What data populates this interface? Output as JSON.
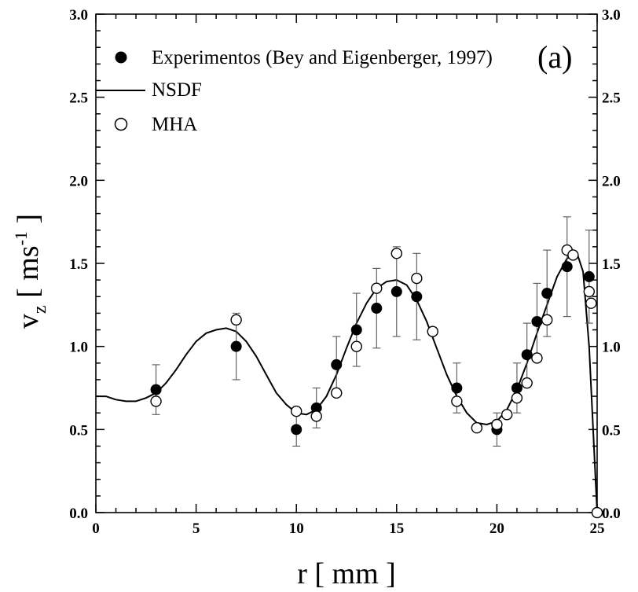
{
  "chart_data": {
    "type": "scatter",
    "title": "",
    "panel_label": "(a)",
    "xlabel": "r [ mm ]",
    "ylabel": {
      "main": "v",
      "sub": "z",
      "bracket_open": "[ ms",
      "sup": "-1",
      "bracket_close": "]"
    },
    "xlim": [
      0,
      25
    ],
    "ylim": [
      0,
      3.0
    ],
    "x_ticks": [
      "0",
      "5",
      "10",
      "15",
      "20",
      "25"
    ],
    "x_tick_values": [
      0,
      5,
      10,
      15,
      20,
      25
    ],
    "y_ticks": [
      "0.0",
      "0.5",
      "1.0",
      "1.5",
      "2.0",
      "2.5",
      "3.0"
    ],
    "y_tick_values": [
      0,
      0.5,
      1.0,
      1.5,
      2.0,
      2.5,
      3.0
    ],
    "grid": false,
    "legend_position": "top-left",
    "series": [
      {
        "name": "Experimentos (Bey and Eigenberger, 1997)",
        "marker": "filled-circle",
        "x": [
          3,
          7,
          10,
          11,
          12,
          13,
          14,
          15,
          16,
          18,
          20,
          21,
          21.5,
          22,
          22.5,
          23.5,
          24.6
        ],
        "y": [
          0.74,
          1.0,
          0.5,
          0.63,
          0.89,
          1.1,
          1.23,
          1.33,
          1.3,
          0.75,
          0.5,
          0.75,
          0.95,
          1.15,
          1.32,
          1.48,
          1.42
        ],
        "err": [
          0.15,
          0.2,
          0.1,
          0.12,
          0.17,
          0.22,
          0.24,
          0.27,
          0.26,
          0.15,
          0.1,
          0.15,
          0.19,
          0.23,
          0.26,
          0.3,
          0.28
        ]
      },
      {
        "name": "NSDF",
        "marker": "line",
        "x": [
          0,
          0.5,
          1,
          1.5,
          2,
          2.5,
          3,
          3.5,
          4,
          4.5,
          5,
          5.5,
          6,
          6.5,
          7,
          7.5,
          8,
          8.5,
          9,
          9.5,
          10,
          10.5,
          11,
          11.5,
          12,
          12.5,
          13,
          13.5,
          14,
          14.5,
          15,
          15.5,
          16,
          16.5,
          17,
          17.5,
          18,
          18.5,
          19,
          19.5,
          20,
          20.5,
          21,
          21.5,
          22,
          22.5,
          23,
          23.5,
          24,
          24.3,
          24.6,
          24.8,
          25
        ],
        "y": [
          0.7,
          0.7,
          0.68,
          0.67,
          0.67,
          0.69,
          0.72,
          0.78,
          0.86,
          0.95,
          1.03,
          1.08,
          1.1,
          1.11,
          1.09,
          1.03,
          0.94,
          0.83,
          0.72,
          0.65,
          0.6,
          0.59,
          0.62,
          0.7,
          0.83,
          0.99,
          1.14,
          1.26,
          1.35,
          1.39,
          1.4,
          1.37,
          1.28,
          1.15,
          0.99,
          0.83,
          0.7,
          0.6,
          0.54,
          0.53,
          0.55,
          0.62,
          0.74,
          0.9,
          1.08,
          1.25,
          1.42,
          1.53,
          1.56,
          1.45,
          1.0,
          0.5,
          0.0
        ]
      },
      {
        "name": "MHA",
        "marker": "open-circle",
        "x": [
          3,
          7,
          10,
          11,
          12,
          13,
          14,
          15,
          16,
          16.8,
          18,
          19,
          20,
          20.5,
          21,
          21.5,
          22,
          22.5,
          23.5,
          23.8,
          24.6,
          24.7,
          25
        ],
        "y": [
          0.67,
          1.16,
          0.61,
          0.58,
          0.72,
          1.0,
          1.35,
          1.56,
          1.41,
          1.09,
          0.67,
          0.51,
          0.53,
          0.59,
          0.69,
          0.78,
          0.93,
          1.16,
          1.58,
          1.55,
          1.33,
          1.26,
          0.0
        ]
      }
    ]
  },
  "colors": {
    "ink": "#000000",
    "background": "#ffffff"
  }
}
